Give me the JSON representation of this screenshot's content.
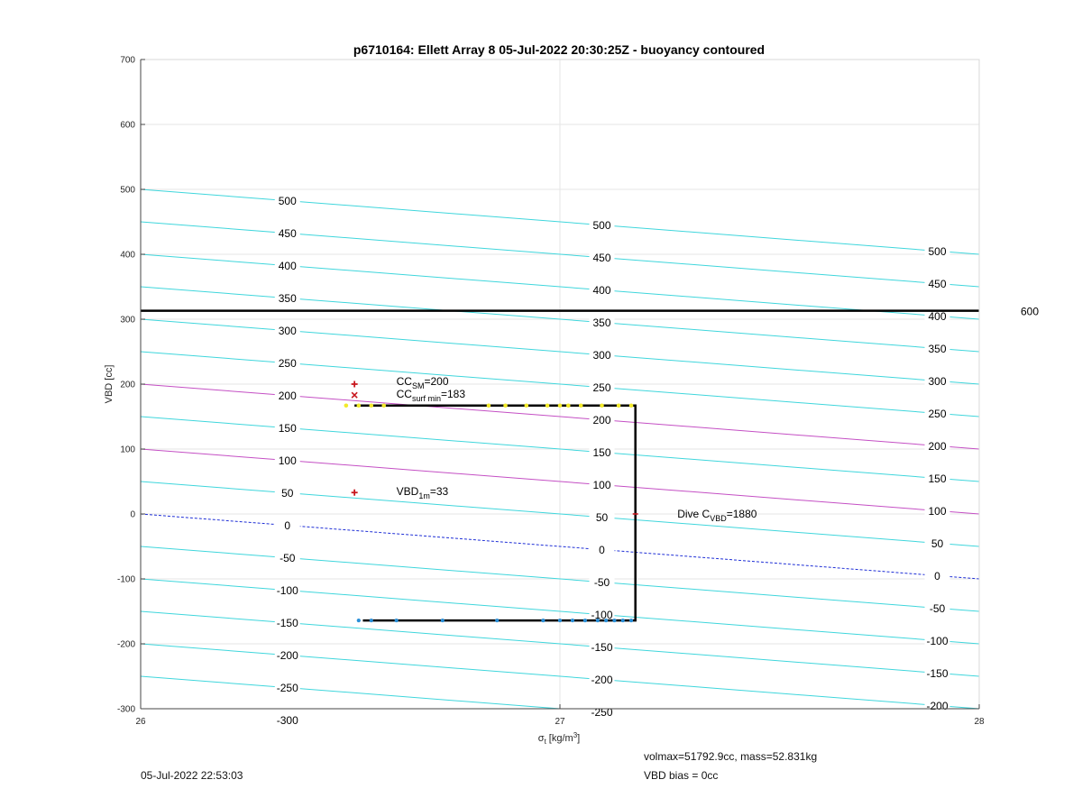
{
  "chart_data": {
    "type": "line",
    "title": "p6710164: Ellett Array 8 05-Jul-2022 20:30:25Z - buoyancy contoured",
    "xlabel_main": "σ",
    "xlabel_sub": "t",
    "xlabel_unit": "[kg/m",
    "xlabel_unit_sup": "3",
    "xlabel_unit_close": "]",
    "ylabel": "VBD [cc]",
    "xlim": [
      26,
      28
    ],
    "ylim": [
      -300,
      700
    ],
    "x_ticks": [
      26,
      27,
      28
    ],
    "y_ticks": [
      -300,
      -200,
      -100,
      0,
      100,
      200,
      300,
      400,
      500,
      600,
      700
    ],
    "grid": true,
    "contours": {
      "left_offset": 0,
      "slope_per_sigma": -50,
      "levels": [
        -300,
        -250,
        -200,
        -150,
        -100,
        -50,
        0,
        50,
        100,
        150,
        200,
        250,
        300,
        350,
        400,
        450,
        500
      ],
      "highlight_magenta": [
        100,
        200
      ],
      "highlight_blue_dashed": [
        0
      ],
      "label_columns": [
        {
          "x": 26.35,
          "levels": [
            -300,
            -250,
            -200,
            -150,
            -100,
            -50,
            0,
            50,
            100,
            150,
            200,
            250,
            300,
            350,
            400,
            450,
            500
          ]
        },
        {
          "x": 27.1,
          "levels": [
            -250,
            -200,
            -150,
            -100,
            -50,
            0,
            50,
            100,
            150,
            200,
            250,
            300,
            350,
            400,
            450,
            500
          ]
        },
        {
          "x": 27.9,
          "levels": [
            -200,
            -150,
            -100,
            -50,
            0,
            50,
            100,
            150,
            200,
            250,
            300,
            350,
            400,
            450,
            500
          ]
        }
      ]
    },
    "horizontal_line": {
      "y": 313,
      "label": "600"
    },
    "dive_path": {
      "x": [
        26.51,
        27.18,
        27.18,
        26.53
      ],
      "y": [
        167,
        167,
        -164,
        -164
      ]
    },
    "yellow_points_x": [
      26.49,
      26.52,
      26.55,
      26.58,
      26.83,
      26.87,
      26.92,
      26.97,
      27.0,
      27.02,
      27.05,
      27.1,
      27.14,
      27.17
    ],
    "yellow_points_y": 167,
    "blue_points_x": [
      26.52,
      26.55,
      26.61,
      26.72,
      26.85,
      26.96,
      27.0,
      27.03,
      27.06,
      27.09,
      27.11,
      27.13,
      27.15,
      27.17
    ],
    "blue_points_y": -164,
    "markers": [
      {
        "type": "plus",
        "x": 26.51,
        "y": 200,
        "label_main": "CC",
        "label_sub": "SM",
        "label_sup": "",
        "label_value": "=200",
        "label_x": 26.61,
        "label_y": 204
      },
      {
        "type": "cross",
        "x": 26.51,
        "y": 183,
        "label_main": "CC",
        "label_sub": "surf min",
        "label_sup": "",
        "label_value": "=183",
        "label_x": 26.61,
        "label_y": 185
      },
      {
        "type": "plus",
        "x": 26.51,
        "y": 33,
        "label_main": "VBD",
        "label_sub": "1m",
        "label_sup": "",
        "label_value": "=33",
        "label_x": 26.61,
        "label_y": 35
      },
      {
        "type": "dash",
        "x": 27.18,
        "y": 0,
        "label_main": "Dive C",
        "label_sub": "VBD",
        "label_sup": "",
        "label_value": "=1880",
        "label_x": 27.28,
        "label_y": 0
      }
    ]
  },
  "footer": {
    "timestamp": "05-Jul-2022 22:53:03",
    "volmax": "volmax=51792.9cc, mass=52.831kg",
    "bias": "VBD bias = 0cc"
  }
}
